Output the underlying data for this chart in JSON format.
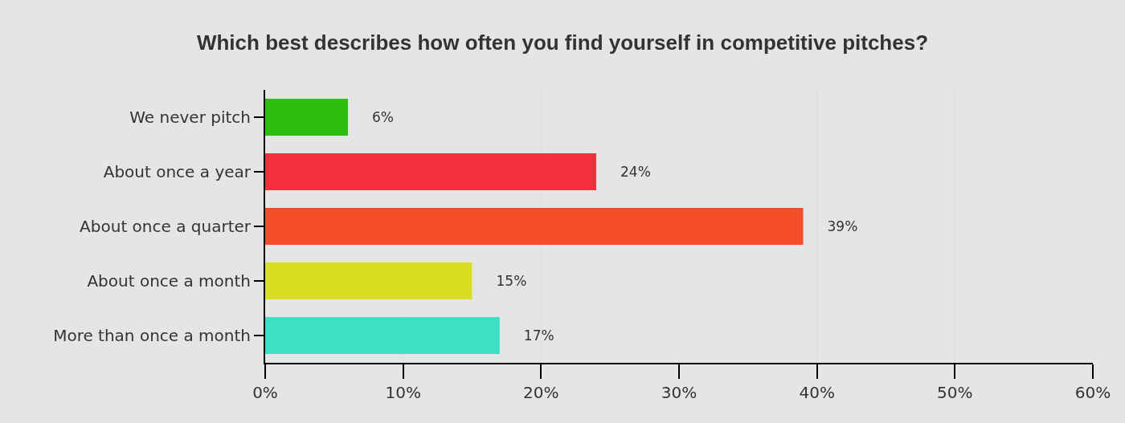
{
  "chart_data": {
    "type": "bar",
    "orientation": "horizontal",
    "title": "Which best describes how often you find yourself in competitive pitches?",
    "categories": [
      "We never pitch",
      "About once a year",
      "About once a quarter",
      "About once a month",
      "More than once a month"
    ],
    "values": [
      6,
      24,
      39,
      15,
      17
    ],
    "colors": [
      "#2dbd10",
      "#f52f3e",
      "#f64e2b",
      "#d7df20",
      "#3ddfc5"
    ],
    "value_labels": [
      "6%",
      "24%",
      "39%",
      "15%",
      "17%"
    ],
    "xlim": [
      0,
      60
    ],
    "xticks": [
      {
        "value": 0,
        "label": "0%"
      },
      {
        "value": 10,
        "label": "10%"
      },
      {
        "value": 20,
        "label": "20%"
      },
      {
        "value": 30,
        "label": "30%"
      },
      {
        "value": 40,
        "label": "40%"
      },
      {
        "value": 50,
        "label": "50%"
      },
      {
        "value": 60,
        "label": "60%"
      }
    ],
    "grid": "x"
  }
}
